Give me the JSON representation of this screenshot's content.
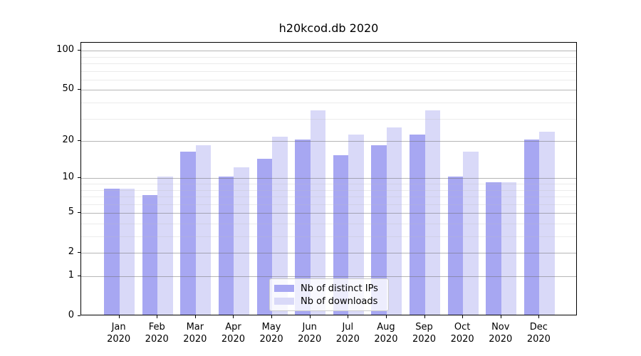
{
  "chart_data": {
    "type": "bar",
    "title": "h20kcod.db 2020",
    "categories": [
      "Jan",
      "Feb",
      "Mar",
      "Apr",
      "May",
      "Jun",
      "Jul",
      "Aug",
      "Sep",
      "Oct",
      "Nov",
      "Dec"
    ],
    "year_label": "2020",
    "series": [
      {
        "name": "Nb of distinct IPs",
        "color": "#a7a7f2",
        "values": [
          8,
          7,
          16,
          10,
          14,
          20,
          15,
          18,
          22,
          10,
          9,
          20
        ]
      },
      {
        "name": "Nb of downloads",
        "color": "#d9d9f8",
        "values": [
          8,
          10,
          18,
          12,
          21,
          34,
          22,
          25,
          34,
          16,
          9,
          23
        ]
      }
    ],
    "yscale": "log1p",
    "ylim": [
      0,
      115
    ],
    "y_major_ticks": [
      0,
      1,
      2,
      5,
      10,
      20,
      50,
      100
    ],
    "y_minor_ticks": [
      3,
      4,
      6,
      7,
      8,
      9,
      30,
      40,
      60,
      70,
      80,
      90
    ],
    "grid": true,
    "legend_position": "lower center",
    "bar_group_width": 0.8
  }
}
